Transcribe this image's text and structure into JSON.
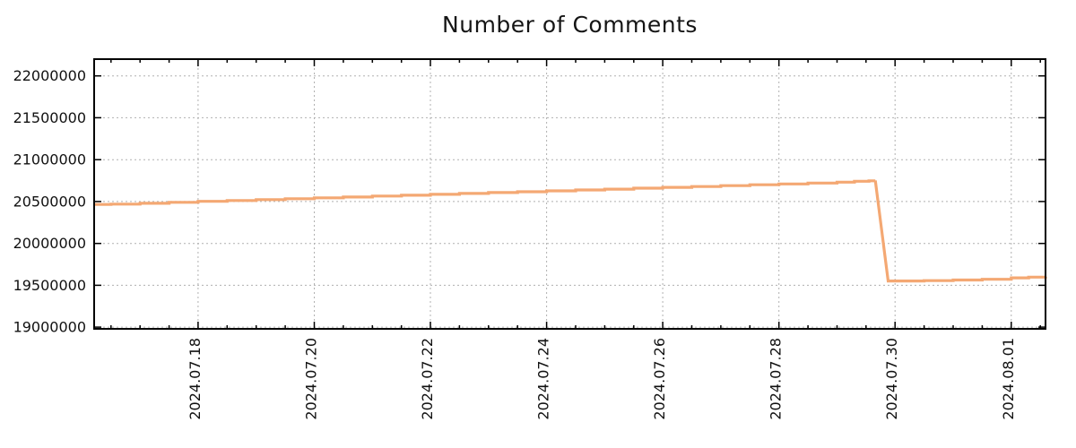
{
  "chart_data": {
    "type": "line",
    "title": "Number of Comments",
    "xlabel": "",
    "ylabel": "",
    "legend": "none",
    "grid": true,
    "grid_style": "dotted",
    "grid_color": "#b0b0b0",
    "axis_color": "#000000",
    "text_color": "#111111",
    "background_color": "#ffffff",
    "y_axis": {
      "ylim": [
        18980000,
        22200000
      ],
      "ticks": [
        19000000,
        19500000,
        20000000,
        20500000,
        21000000,
        21500000,
        22000000
      ],
      "tick_labels": [
        "19000000",
        "19500000",
        "20000000",
        "20500000",
        "21000000",
        "21500000",
        "22000000"
      ]
    },
    "x_axis": {
      "unit": "days since 2024-07-16 00:00",
      "xlim_days": [
        0.21,
        16.59
      ],
      "major_tick_positions_days": [
        2,
        4,
        6,
        8,
        10,
        12,
        14,
        16
      ],
      "tick_labels": [
        "2024.07.18",
        "2024.07.20",
        "2024.07.22",
        "2024.07.24",
        "2024.07.26",
        "2024.07.28",
        "2024.07.30",
        "2024.08.01"
      ],
      "minor_tick_interval_days": 0.5,
      "label_rotation_deg": -90
    },
    "series": [
      {
        "name": "Number of Comments",
        "color": "#f4a873",
        "line_width": 3.2,
        "points_day_value": [
          [
            0.21,
            20465000
          ],
          [
            0.5,
            20469000
          ],
          [
            1.0,
            20479000
          ],
          [
            1.5,
            20491000
          ],
          [
            2.0,
            20502000
          ],
          [
            2.5,
            20512000
          ],
          [
            3.0,
            20523000
          ],
          [
            3.5,
            20533000
          ],
          [
            4.0,
            20544000
          ],
          [
            4.5,
            20554000
          ],
          [
            5.0,
            20565000
          ],
          [
            5.5,
            20575000
          ],
          [
            6.0,
            20586000
          ],
          [
            6.5,
            20596000
          ],
          [
            7.0,
            20607000
          ],
          [
            7.5,
            20617000
          ],
          [
            8.0,
            20627000
          ],
          [
            8.5,
            20638000
          ],
          [
            9.0,
            20648000
          ],
          [
            9.5,
            20659000
          ],
          [
            10.0,
            20669000
          ],
          [
            10.5,
            20679000
          ],
          [
            11.0,
            20690000
          ],
          [
            11.5,
            20700000
          ],
          [
            12.0,
            20710000
          ],
          [
            12.5,
            20721000
          ],
          [
            13.0,
            20731000
          ],
          [
            13.3,
            20742000
          ],
          [
            13.55,
            20747000
          ],
          [
            13.66,
            20750000
          ],
          [
            13.88,
            19551000
          ],
          [
            14.5,
            19556000
          ],
          [
            15.0,
            19563000
          ],
          [
            15.5,
            19572000
          ],
          [
            16.0,
            19589000
          ],
          [
            16.3,
            19597000
          ],
          [
            16.59,
            19604000
          ]
        ]
      }
    ]
  }
}
